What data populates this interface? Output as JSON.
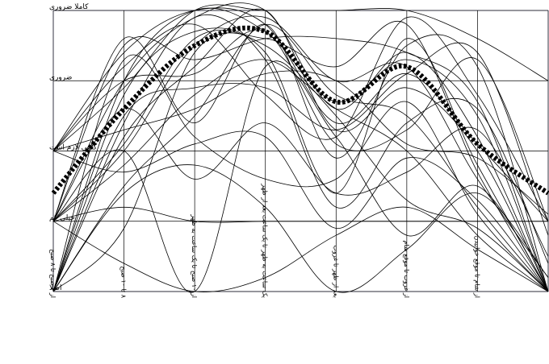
{
  "chart_data": {
    "type": "line",
    "title": "",
    "xlabel": "",
    "ylabel": "",
    "categories": [
      "از ۶ صبح تا ۸ صبح",
      "۸ تا ۱۰ صبح",
      "از ۱۰ صبح تا یک ساعت به ظهر",
      "یک ساعت به ظهر تا یک ساعت بعد از ظهر",
      "بعد از ظهر تا غروب",
      "از غروب تا موقع شام",
      "از شام تا موقع خوابیدن",
      ""
    ],
    "y_categories": [
      "اصلا",
      "خیلی کم",
      "گاهی لازم است",
      "ضروری",
      "کاملا ضروری"
    ],
    "ylim": [
      1,
      5
    ],
    "grid": true,
    "series": [
      {
        "values": [
          3,
          4.4,
          5,
          4.8,
          3.4,
          4.1,
          3.1,
          2
        ]
      },
      {
        "values": [
          1,
          4,
          5,
          4.7,
          3.7,
          4.3,
          3.5,
          1
        ]
      },
      {
        "values": [
          2,
          4,
          4.9,
          5,
          3.6,
          4.4,
          3.2,
          1
        ]
      },
      {
        "values": [
          1,
          3.8,
          4.7,
          4.4,
          2.4,
          4.6,
          2.8,
          1
        ]
      },
      {
        "values": [
          2,
          3,
          4.5,
          4.9,
          4,
          4.2,
          2.6,
          1.2
        ]
      },
      {
        "values": [
          3,
          4.2,
          4.8,
          3.8,
          3.2,
          4.9,
          3.8,
          2
        ]
      },
      {
        "values": [
          1,
          3.2,
          4.2,
          5,
          3.3,
          3.9,
          3,
          1
        ]
      },
      {
        "values": [
          2,
          4.6,
          3.4,
          4.8,
          2.9,
          4.5,
          4.2,
          1
        ]
      },
      {
        "values": [
          1,
          2.5,
          3.5,
          4.8,
          3.8,
          3.5,
          2.2,
          1
        ]
      },
      {
        "values": [
          2,
          3,
          1,
          4.2,
          3.2,
          1.8,
          2.5,
          1
        ]
      },
      {
        "values": [
          1,
          2.4,
          2.8,
          2.2,
          1,
          1.6,
          2.4,
          1.2
        ]
      },
      {
        "values": [
          2,
          1.4,
          1,
          1.2,
          1.8,
          2.2,
          1.6,
          1
        ]
      },
      {
        "values": [
          3,
          3.9,
          5,
          5,
          5,
          5,
          4.6,
          4
        ]
      },
      {
        "values": [
          3,
          4,
          4.1,
          4.7,
          3.1,
          3.3,
          4.3,
          2
        ]
      },
      {
        "values": [
          2,
          2.8,
          3.8,
          4.3,
          3.6,
          3,
          1.8,
          1
        ]
      },
      {
        "values": [
          1,
          3.4,
          4.9,
          4.3,
          2.2,
          3.4,
          3.6,
          1.4
        ]
      },
      {
        "values": [
          2,
          2.2,
          2,
          2,
          2,
          2,
          2,
          2
        ]
      },
      {
        "values": [
          1,
          4.3,
          3.2,
          2.6,
          2.6,
          3.7,
          2.1,
          1
        ]
      },
      {
        "values": [
          3,
          3.3,
          3.6,
          4.1,
          4,
          3.1,
          2.9,
          2.1
        ]
      },
      {
        "values": [
          2,
          3.6,
          2.6,
          3.4,
          2.4,
          2.7,
          3.3,
          1.5
        ]
      },
      {
        "values": [
          1,
          1.9,
          4.4,
          4.6,
          4.2,
          4.8,
          2.7,
          1
        ]
      },
      {
        "values": [
          2,
          3.1,
          4.6,
          4.5,
          3.5,
          2.3,
          1.9,
          1
        ]
      },
      {
        "values": [
          1,
          3.5,
          3.9,
          3.9,
          3.3,
          4.1,
          4.4,
          1.8
        ]
      },
      {
        "values": [
          3,
          2.7,
          3.1,
          3.2,
          1.9,
          2.9,
          2.3,
          1
        ]
      },
      {
        "values": [
          2,
          4.5,
          4.3,
          4.6,
          4.6,
          4.4,
          3.7,
          1
        ]
      }
    ],
    "mean": {
      "values": [
        2.4,
        3.6,
        4.5,
        4.7,
        3.7,
        4.2,
        3.1,
        2.4
      ]
    }
  }
}
